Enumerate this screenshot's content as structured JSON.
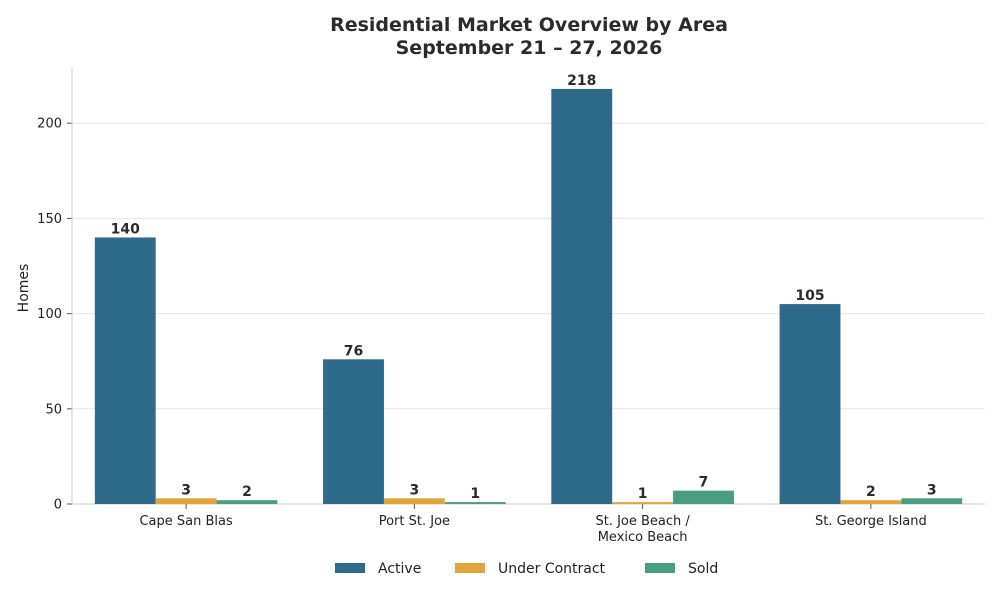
{
  "chart_data": {
    "type": "bar",
    "title_lines": [
      "Residential Market Overview by Area",
      "September 21 – 27, 2026"
    ],
    "xlabel": "",
    "ylabel": "Homes",
    "ylim": [
      0,
      229
    ],
    "yticks": [
      0,
      50,
      100,
      150,
      200
    ],
    "grid": true,
    "legend_position": "bottom-center",
    "categories": [
      [
        "Cape San Blas"
      ],
      [
        "Port St. Joe"
      ],
      [
        "St. Joe Beach /",
        "Mexico Beach"
      ],
      [
        "St. George Island"
      ]
    ],
    "series": [
      {
        "name": "Active",
        "color": "#2e6a8a",
        "values": [
          140,
          76,
          218,
          105
        ]
      },
      {
        "name": "Under Contract",
        "color": "#e3a43b",
        "values": [
          3,
          3,
          1,
          2
        ]
      },
      {
        "name": "Sold",
        "color": "#4a9e80",
        "values": [
          2,
          1,
          7,
          3
        ]
      }
    ]
  }
}
